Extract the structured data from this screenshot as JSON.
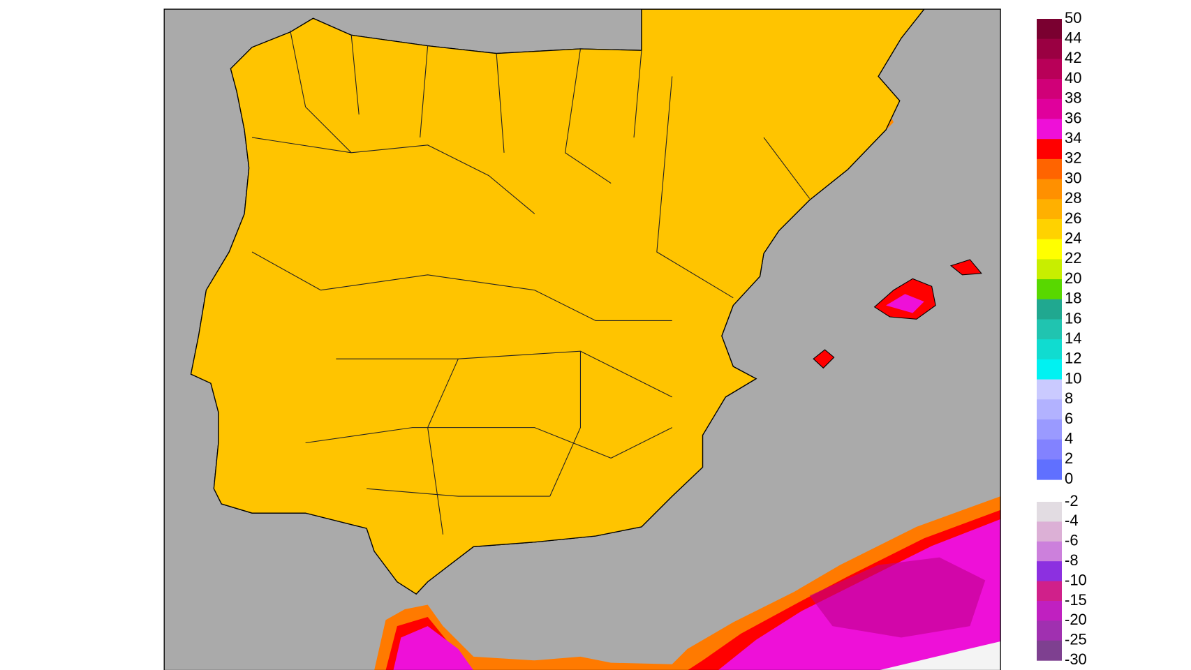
{
  "legend": {
    "bars": [
      {
        "levels": [
          50,
          44,
          42,
          40,
          38,
          36,
          34,
          32,
          30,
          28,
          26,
          24,
          22,
          20,
          18,
          16,
          14,
          12,
          10,
          8,
          6,
          4,
          2,
          0
        ],
        "colors": [
          "#7a0030",
          "#9a0042",
          "#b80058",
          "#d00078",
          "#e0009c",
          "#ee10d8",
          "#ff0000",
          "#ff6400",
          "#ff9000",
          "#ffb000",
          "#ffd200",
          "#ffff00",
          "#c8ee00",
          "#58d800",
          "#20a890",
          "#20c4b0",
          "#10dcd0",
          "#00f2f2",
          "#cacaff",
          "#b2b2ff",
          "#9a9aff",
          "#8282ff",
          "#6070ff"
        ]
      },
      {
        "levels": [
          -2,
          -4,
          -6,
          -8,
          -10,
          -15,
          -20,
          -25,
          -30
        ],
        "colors": [
          "#e2dce2",
          "#dcb0d6",
          "#cc80dc",
          "#8c30e0",
          "#d0208a",
          "#c020c0",
          "#a030b0",
          "#7e4090"
        ]
      }
    ]
  }
}
